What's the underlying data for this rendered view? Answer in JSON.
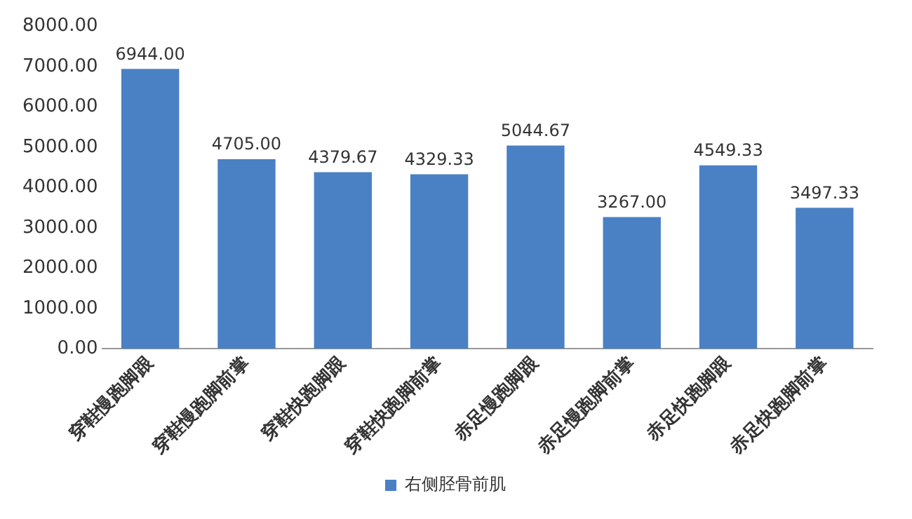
{
  "chart_data": {
    "type": "bar",
    "categories": [
      "穿鞋慢跑脚跟",
      "穿鞋慢跑脚前掌",
      "穿鞋快跑脚跟",
      "穿鞋快跑脚前掌",
      "赤足慢跑脚跟",
      "赤足慢跑脚前掌",
      "赤足快跑脚跟",
      "赤足快跑脚前掌"
    ],
    "series": [
      {
        "name": "右侧胫骨前肌",
        "color": "#4a80c4",
        "values": [
          6944.0,
          4705.0,
          4379.67,
          4329.33,
          5044.67,
          3267.0,
          4549.33,
          3497.33
        ],
        "value_labels": [
          "6944.00",
          "4705.00",
          "4379.67",
          "4329.33",
          "5044.67",
          "3267.00",
          "4549.33",
          "3497.33"
        ]
      }
    ],
    "ylim": [
      0,
      8000
    ],
    "yticks": [
      {
        "value": 0,
        "label": "0.00"
      },
      {
        "value": 1000,
        "label": "1000.00"
      },
      {
        "value": 2000,
        "label": "2000.00"
      },
      {
        "value": 3000,
        "label": "3000.00"
      },
      {
        "value": 4000,
        "label": "4000.00"
      },
      {
        "value": 5000,
        "label": "5000.00"
      },
      {
        "value": 6000,
        "label": "6000.00"
      },
      {
        "value": 7000,
        "label": "7000.00"
      },
      {
        "value": 8000,
        "label": "8000.00"
      }
    ],
    "grid": false,
    "legend": "bottom"
  }
}
